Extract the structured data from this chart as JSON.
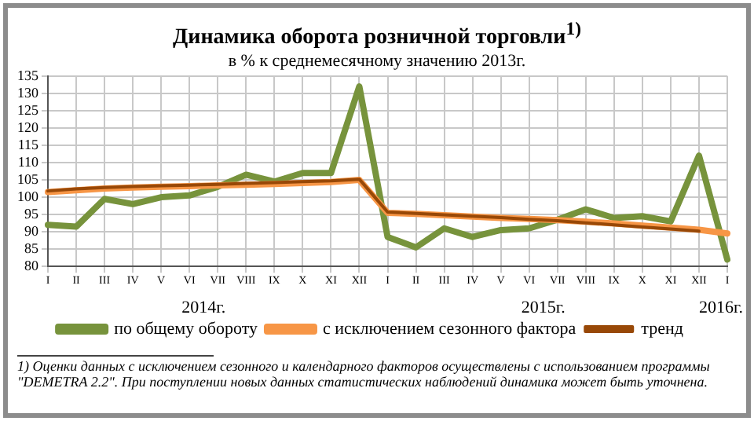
{
  "chart_data": {
    "type": "line",
    "title": "Динамика оборота розничной торговли$^{1)}$",
    "subtitle": "в % к среднемесячному значению 2013г.",
    "categories": [
      "I",
      "II",
      "III",
      "IV",
      "V",
      "VI",
      "VII",
      "VIII",
      "IX",
      "X",
      "XI",
      "XII",
      "I",
      "II",
      "III",
      "IV",
      "V",
      "VI",
      "VII",
      "VIII",
      "IX",
      "X",
      "XI",
      "XII",
      "I"
    ],
    "series": [
      {
        "name": "по общему обороту",
        "color": "#77933c",
        "values": [
          92,
          91.5,
          99.5,
          98,
          100,
          100.5,
          103,
          106.5,
          104.5,
          107,
          107,
          132,
          88.5,
          85.5,
          91,
          88.5,
          90.5,
          91,
          93.5,
          96.5,
          94,
          94.5,
          93,
          112,
          82
        ]
      },
      {
        "name": "с исключением сезонного фактора",
        "color": "#f79646",
        "values": [
          101.5,
          102,
          102.5,
          102.8,
          103,
          103.2,
          103.4,
          103.6,
          103.8,
          104.1,
          104.4,
          105,
          95.5,
          95.2,
          94.8,
          94.4,
          94,
          93.7,
          93.4,
          92.9,
          92.4,
          91.8,
          91.2,
          90.6,
          89.5
        ]
      },
      {
        "name": "тренд",
        "color": "#984807",
        "values": [
          101.8,
          102.4,
          102.8,
          103.1,
          103.3,
          103.5,
          103.7,
          104,
          104.2,
          104.5,
          104.7,
          105.2,
          95.7,
          95.3,
          94.9,
          94.5,
          94.1,
          93.6,
          93.2,
          92.6,
          92,
          91.4,
          90.8,
          90.2,
          null
        ]
      }
    ],
    "ylim": [
      80,
      135
    ],
    "yticks": [
      80,
      85,
      90,
      95,
      100,
      105,
      110,
      115,
      120,
      125,
      130,
      135
    ],
    "grid": true,
    "legend": "bottom",
    "marker": "none",
    "line_style": "solid",
    "annotations": [
      "2014г.",
      "2015г.",
      "2016г.",
      "1) Оценки данных с исключением сезонного и календарного факторов осуществлены с использованием программы \"DEMETRA 2.2\". При поступлении новых данных статистических наблюдений динамика может быть уточнена."
    ]
  }
}
